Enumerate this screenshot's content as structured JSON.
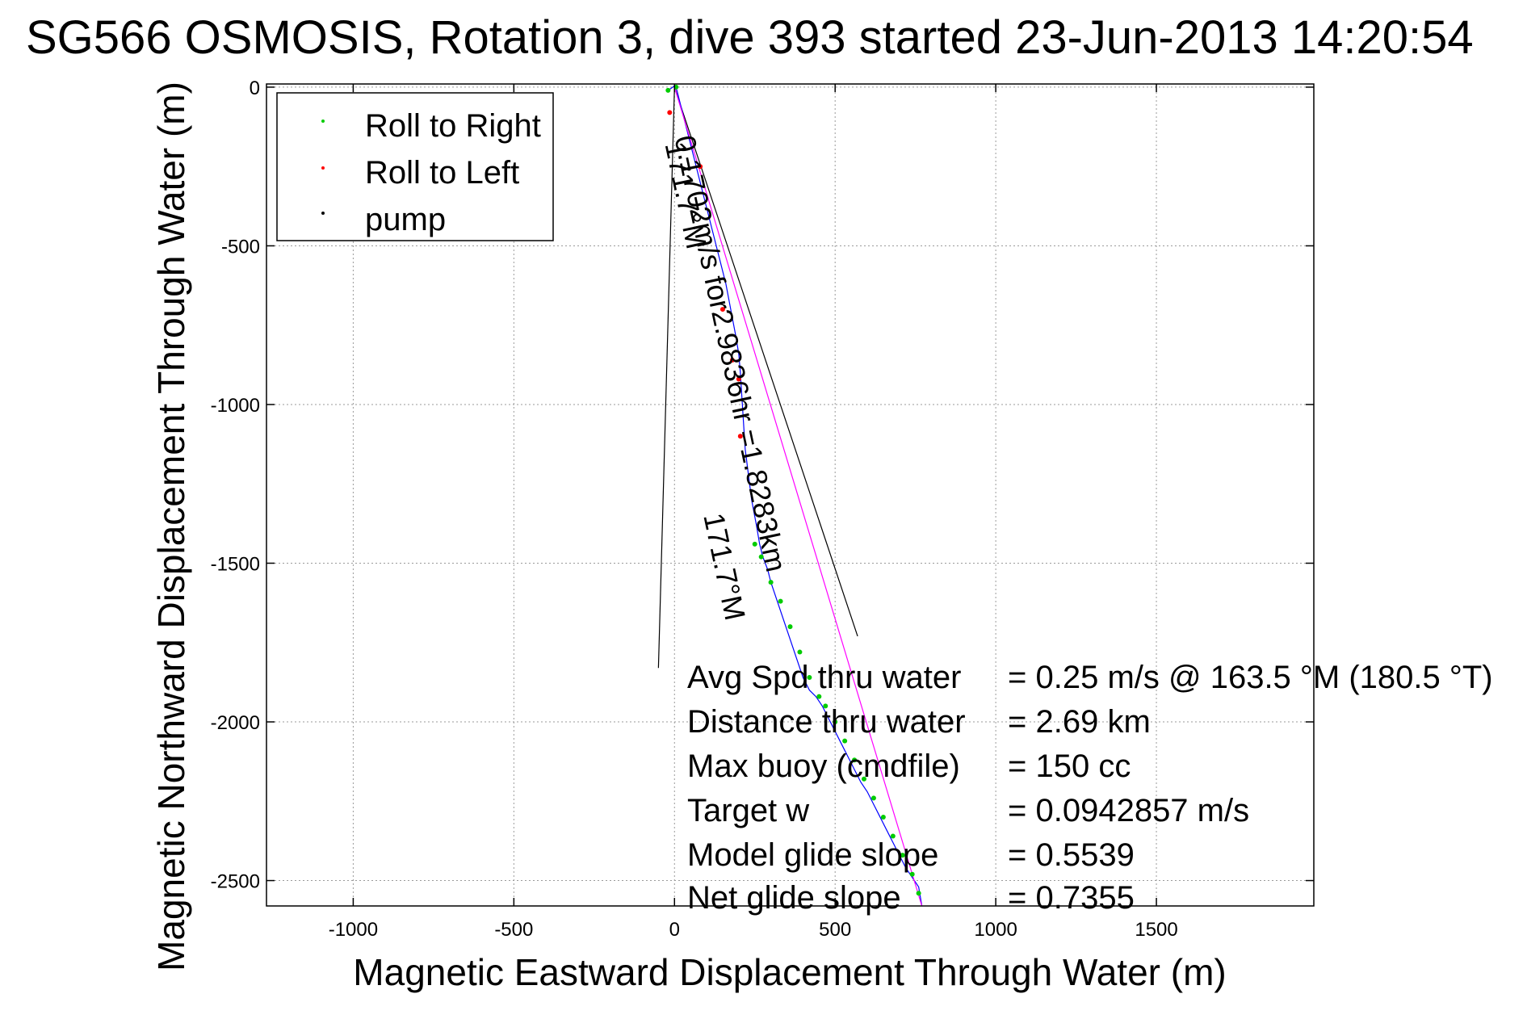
{
  "chart_data": {
    "type": "line",
    "title": "SG566 OSMOSIS, Rotation 3, dive 393 started 23-Jun-2013 14:20:54",
    "xlabel": "Magnetic Eastward Displacement Through Water (m)",
    "ylabel": "Magnetic Northward Displacement Through Water (m)",
    "xlim": [
      -1270,
      1990
    ],
    "ylim": [
      -2580,
      10
    ],
    "xticks": [
      -1000,
      -500,
      0,
      500,
      1000,
      1500
    ],
    "xtick_labels": [
      "-1000",
      "-500",
      "0",
      "500",
      "1000",
      "1500"
    ],
    "yticks": [
      0,
      -500,
      -1000,
      -1500,
      -2000,
      -2500
    ],
    "ytick_labels": [
      "0",
      "-500",
      "-1000",
      "-1500",
      "-2000",
      "-2500"
    ],
    "grid": true,
    "legend": {
      "position": "top-left",
      "entries": [
        {
          "label": "Roll to Right",
          "color": "#00cc00"
        },
        {
          "label": "Roll to Left",
          "color": "#ff0000"
        },
        {
          "label": "pump",
          "color": "#000000"
        }
      ]
    },
    "series": [
      {
        "name": "track",
        "color": "#0000ff",
        "x": [
          -20,
          -5,
          0,
          5,
          20,
          40,
          60,
          80,
          100,
          120,
          140,
          160,
          175,
          190,
          200,
          205,
          210,
          215,
          220,
          230,
          240,
          255,
          265,
          275,
          290,
          300,
          320,
          340,
          360,
          380,
          400,
          420,
          440,
          460,
          480,
          500,
          520,
          540,
          560,
          580,
          600,
          620,
          640,
          660,
          680,
          700,
          720,
          740,
          760,
          770
        ],
        "y": [
          -10,
          0,
          5,
          0,
          -60,
          -140,
          -220,
          -300,
          -380,
          -460,
          -540,
          -620,
          -700,
          -780,
          -840,
          -900,
          -980,
          -1060,
          -1140,
          -1220,
          -1300,
          -1380,
          -1440,
          -1480,
          -1520,
          -1560,
          -1620,
          -1680,
          -1740,
          -1800,
          -1860,
          -1900,
          -1920,
          -1950,
          -1990,
          -2030,
          -2070,
          -2110,
          -2150,
          -2190,
          -2220,
          -2260,
          -2300,
          -2340,
          -2380,
          -2420,
          -2460,
          -2490,
          -2520,
          -2580
        ]
      },
      {
        "name": "heading",
        "color": "#ff00ff",
        "x": [
          0,
          770
        ],
        "y": [
          0,
          -2580
        ]
      }
    ],
    "roll_right_points": {
      "color": "#00cc00",
      "x": [
        -20,
        5,
        250,
        270,
        300,
        330,
        360,
        390,
        420,
        450,
        470,
        500,
        530,
        560,
        590,
        620,
        650,
        680,
        710,
        740,
        760
      ],
      "y": [
        -10,
        0,
        -1440,
        -1480,
        -1560,
        -1620,
        -1700,
        -1780,
        -1860,
        -1920,
        -1950,
        -2000,
        -2060,
        -2120,
        -2180,
        -2240,
        -2300,
        -2360,
        -2420,
        -2480,
        -2540
      ]
    },
    "roll_left_points": {
      "color": "#ff0000",
      "x": [
        -15,
        80,
        150,
        180,
        200,
        205
      ],
      "y": [
        -80,
        -250,
        -700,
        -860,
        -920,
        -1100
      ]
    },
    "pump_points": {
      "color": "#000000",
      "x": [],
      "y": []
    },
    "cone_lines": {
      "color": "#000000",
      "left": {
        "x": [
          0,
          -50
        ],
        "y": [
          0,
          -1830
        ]
      },
      "right": {
        "x": [
          0,
          570
        ],
        "y": [
          0,
          -1730
        ]
      }
    },
    "rotated_annotations": [
      {
        "text": "0.1702m/s for2.9836hr =1.8283km",
        "x": 0,
        "y": -160,
        "angle_deg": 78
      },
      {
        "text": "171.7°M",
        "x": -30,
        "y": -180,
        "angle_deg": 78
      },
      {
        "text": "171.7°M",
        "x": 90,
        "y": -1350,
        "angle_deg": 78
      }
    ],
    "stats": [
      {
        "label": "Avg Spd thru water",
        "value": "=  0.25 m/s @ 163.5 °M (180.5 °T)"
      },
      {
        "label": "Distance thru water",
        "value": "=  2.69 km"
      },
      {
        "label": "Max buoy (cmdfile)",
        "value": "= 150 cc"
      },
      {
        "label": "Target w",
        "value": "= 0.0942857 m/s"
      },
      {
        "label": "Model glide slope",
        "value": "= 0.5539"
      },
      {
        "label": "Net glide slope",
        "value": "= 0.7355"
      }
    ]
  }
}
